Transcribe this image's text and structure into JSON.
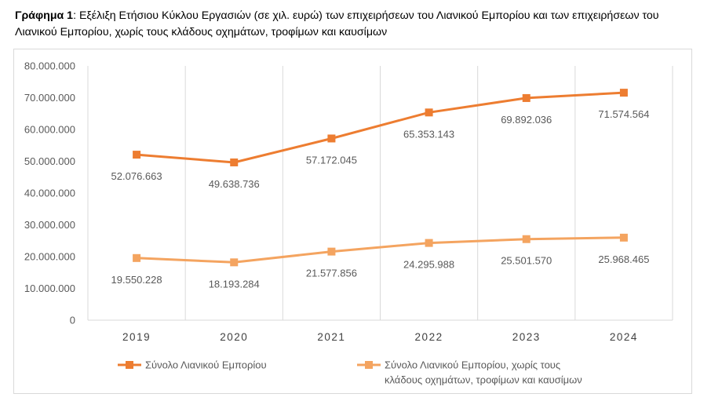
{
  "caption": {
    "prefix": "Γράφημα 1",
    "text": ": Εξέλιξη Ετήσιου Κύκλου Εργασιών (σε χιλ. ευρώ) των επιχειρήσεων του Λιανικού Εμπορίου και των επιχειρήσεων του Λιανικού Εμπορίου, χωρίς τους κλάδους οχημάτων, τροφίμων και καυσίμων"
  },
  "chart_data": {
    "type": "line",
    "categories": [
      "2019",
      "2020",
      "2021",
      "2022",
      "2023",
      "2024"
    ],
    "ylim": [
      0,
      80000000
    ],
    "yticks": [
      0,
      10000000,
      20000000,
      30000000,
      40000000,
      50000000,
      60000000,
      70000000,
      80000000
    ],
    "ytick_labels": [
      "0",
      "10.000.000",
      "20.000.000",
      "30.000.000",
      "40.000.000",
      "50.000.000",
      "60.000.000",
      "70.000.000",
      "80.000.000"
    ],
    "grid": "vertical",
    "legend_position": "bottom",
    "series": [
      {
        "name": "Σύνολο Λιανικού Εμπορίου",
        "color": "#ED7D31",
        "values": [
          52076663,
          49638736,
          57172045,
          65353143,
          69892036,
          71574564
        ],
        "labels": [
          "52.076.663",
          "49.638.736",
          "57.172.045",
          "65.353.143",
          "69.892.036",
          "71.574.564"
        ]
      },
      {
        "name": "Σύνολο Λιανικού Εμπορίου, χωρίς τους κλάδους οχημάτων, τροφίμων και καυσίμων",
        "legend_lines": [
          "Σύνολο Λιανικού Εμπορίου, χωρίς τους",
          "κλάδους οχημάτων, τροφίμων και καυσίμων"
        ],
        "color": "#F4A460",
        "values": [
          19550228,
          18193284,
          21577856,
          24295988,
          25501570,
          25968465
        ],
        "labels": [
          "19.550.228",
          "18.193.284",
          "21.577.856",
          "24.295.988",
          "25.501.570",
          "25.968.465"
        ]
      }
    ]
  }
}
